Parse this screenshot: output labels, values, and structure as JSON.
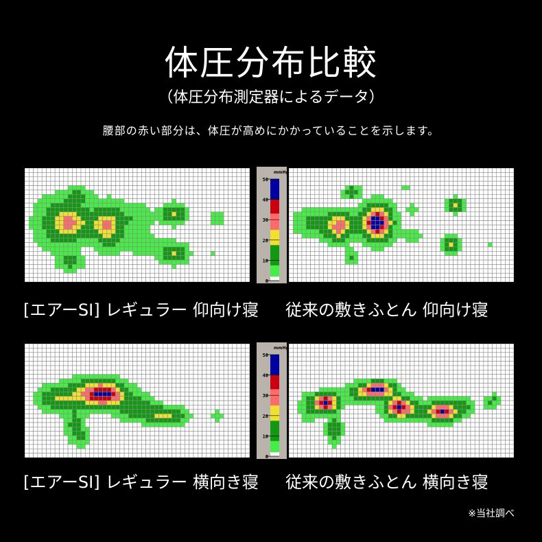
{
  "header": {
    "title": "体圧分布比較",
    "subtitle": "（体圧分布測定器によるデータ）",
    "description": "腰部の赤い部分は、体圧が高めにかかっていることを示します。"
  },
  "panels": [
    {
      "label": "[エアーSI] レギュラー 仰向け寝"
    },
    {
      "label": "従来の敷きふとん 仰向け寝"
    },
    {
      "label": "[エアーSI] レギュラー 横向き寝"
    },
    {
      "label": "従来の敷きふとん 横向き寝"
    }
  ],
  "footnote": "※当社調べ",
  "chart_data": {
    "type": "heatmap",
    "scale": {
      "unit": "mmHg",
      "ticks": [
        "0",
        "10",
        "20",
        "30",
        "40",
        "50"
      ],
      "range": [
        0,
        50
      ],
      "bands": [
        {
          "from": 0,
          "to": 2,
          "color": "#ffffff"
        },
        {
          "from": 2,
          "to": 7.5,
          "color": "#44ee44"
        },
        {
          "from": 7.5,
          "to": 17.5,
          "color": "#119911"
        },
        {
          "from": 17.5,
          "to": 25,
          "color": "#f2e030"
        },
        {
          "from": 25,
          "to": 33,
          "color": "#ff6b6b"
        },
        {
          "from": 33,
          "to": 40,
          "color": "#c80010"
        },
        {
          "from": 40,
          "to": 50,
          "color": "#0000a0"
        }
      ]
    }
  }
}
